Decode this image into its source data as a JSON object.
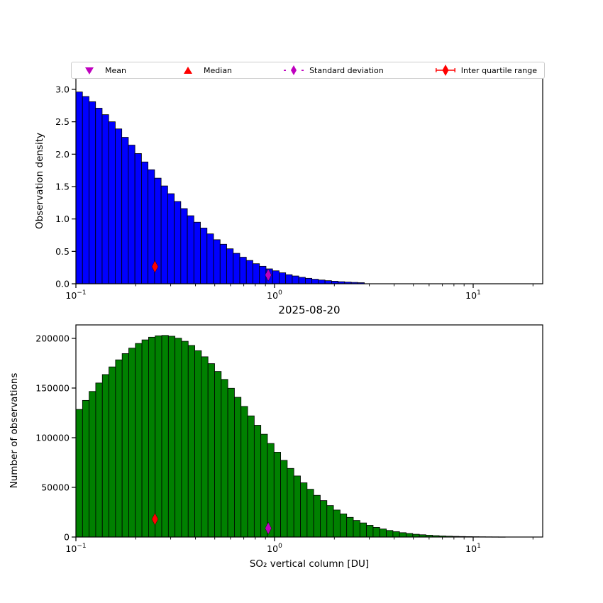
{
  "figure": {
    "background": "#ffffff",
    "frame_color": "#000000"
  },
  "legend": {
    "items": [
      {
        "label": "Mean",
        "marker": "triangle-down",
        "color": "#bf00bf"
      },
      {
        "label": "Median",
        "marker": "triangle-up",
        "color": "#ff0000"
      },
      {
        "label": "Standard deviation",
        "marker": "diamond-dashdot",
        "color": "#bf00bf"
      },
      {
        "label": "Inter quartile range",
        "marker": "diamond-line",
        "color": "#ff0000"
      }
    ]
  },
  "chart_data": [
    {
      "type": "bar",
      "id": "observation-density-histogram",
      "xlabel": "2025-08-20",
      "ylabel": "Observation density",
      "x_scale": "log",
      "xlim": [
        0.1,
        22.4
      ],
      "ylim": [
        0,
        3.175
      ],
      "bar_color": "#0000ff",
      "edge_color": "#000000",
      "bins_log10_start": -1,
      "bins_log10_step": 0.033,
      "n_bins": 44,
      "values": [
        2.96,
        2.89,
        2.81,
        2.71,
        2.61,
        2.5,
        2.39,
        2.26,
        2.14,
        2.01,
        1.88,
        1.76,
        1.63,
        1.51,
        1.39,
        1.27,
        1.16,
        1.05,
        0.95,
        0.86,
        0.77,
        0.68,
        0.61,
        0.54,
        0.47,
        0.41,
        0.36,
        0.31,
        0.27,
        0.23,
        0.2,
        0.17,
        0.14,
        0.12,
        0.1,
        0.084,
        0.07,
        0.058,
        0.048,
        0.039,
        0.032,
        0.026,
        0.021,
        0.017
      ],
      "yticks": [
        {
          "v": 0.0,
          "label": "0.0"
        },
        {
          "v": 0.5,
          "label": "0.5"
        },
        {
          "v": 1.0,
          "label": "1.0"
        },
        {
          "v": 1.5,
          "label": "1.5"
        },
        {
          "v": 2.0,
          "label": "2.0"
        },
        {
          "v": 2.5,
          "label": "2.5"
        },
        {
          "v": 3.0,
          "label": "3.0"
        }
      ],
      "xticks": [
        {
          "log": -1,
          "base": "10",
          "exp": "−1"
        },
        {
          "log": 0,
          "base": "10",
          "exp": "0"
        },
        {
          "log": 1,
          "base": "10",
          "exp": "1"
        }
      ],
      "markers": [
        {
          "name": "inter-quartile-range",
          "x": 0.25,
          "y": 0.264,
          "color": "#ff0000"
        },
        {
          "name": "standard-deviation",
          "x": 0.93,
          "y": 0.135,
          "color": "#bf00bf"
        }
      ]
    },
    {
      "type": "bar",
      "id": "number-of-observations-histogram",
      "xlabel": "SO₂ vertical column [DU]",
      "ylabel": "Number of observations",
      "x_scale": "log",
      "xlim": [
        0.1,
        22.4
      ],
      "ylim": [
        0,
        213571
      ],
      "bar_color": "#008000",
      "edge_color": "#000000",
      "bins_log10_start": -1,
      "bins_log10_step": 0.03325,
      "n_bins": 65,
      "values": [
        128500,
        137600,
        146600,
        155100,
        163600,
        171300,
        178400,
        184700,
        190200,
        194900,
        198500,
        201200,
        202600,
        203000,
        202200,
        200200,
        197100,
        192900,
        187600,
        181500,
        174600,
        166700,
        158700,
        149800,
        140700,
        131500,
        122000,
        112500,
        103500,
        94200,
        85400,
        77200,
        69100,
        61500,
        54600,
        48100,
        42000,
        36700,
        31700,
        27200,
        23300,
        19800,
        16700,
        14200,
        11800,
        9700,
        8100,
        6600,
        5400,
        4400,
        3600,
        2800,
        2300,
        1800,
        1400,
        1100,
        860,
        670,
        520,
        400,
        310,
        240,
        180,
        140,
        100
      ],
      "yticks": [
        {
          "v": 0,
          "label": "0"
        },
        {
          "v": 50000,
          "label": "50000"
        },
        {
          "v": 100000,
          "label": "100000"
        },
        {
          "v": 150000,
          "label": "150000"
        },
        {
          "v": 200000,
          "label": "200000"
        }
      ],
      "xticks": [
        {
          "log": -1,
          "base": "10",
          "exp": "−1"
        },
        {
          "log": 0,
          "base": "10",
          "exp": "0"
        },
        {
          "log": 1,
          "base": "10",
          "exp": "1"
        }
      ],
      "markers": [
        {
          "name": "inter-quartile-range",
          "x": 0.25,
          "y": 18000,
          "color": "#ff0000"
        },
        {
          "name": "standard-deviation",
          "x": 0.93,
          "y": 8800,
          "color": "#bf00bf"
        }
      ]
    }
  ]
}
